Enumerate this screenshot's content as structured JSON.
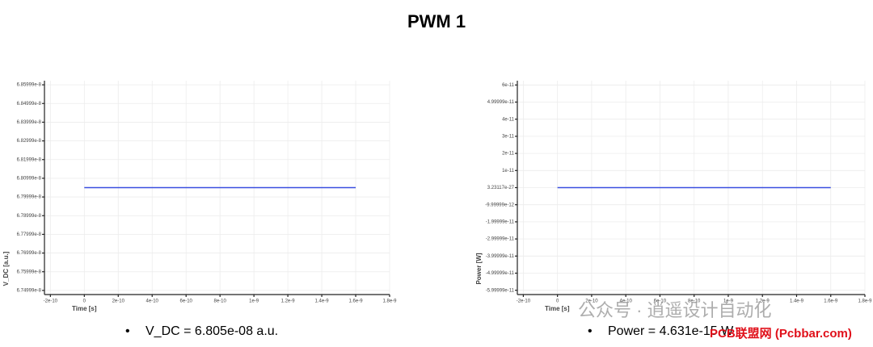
{
  "title": "PWM 1",
  "chart_data": [
    {
      "type": "line",
      "xlabel": "Time [s]",
      "ylabel": "V_DC [a.u.]",
      "x": [
        0,
        1.6e-09
      ],
      "values": [
        6.805e-08,
        6.805e-08
      ],
      "color": "#3a4fe0",
      "xlim": [
        -2.35e-10,
        1.8e-09
      ],
      "xticks": [
        -2e-10,
        0,
        2e-10,
        4e-10,
        6e-10,
        8e-10,
        1e-09,
        1.2e-09,
        1.4e-09,
        1.6e-09,
        1.8e-09
      ],
      "ylim": [
        6.74779e-08,
        6.86219e-08
      ],
      "yticks": [
        6.74999e-08,
        6.75999e-08,
        6.76999e-08,
        6.77999e-08,
        6.78999e-08,
        6.79999e-08,
        6.80999e-08,
        6.81999e-08,
        6.82999e-08,
        6.83999e-08,
        6.84999e-08,
        6.85999e-08
      ],
      "grid": true
    },
    {
      "type": "line",
      "xlabel": "Time [s]",
      "ylabel": "Power [W]",
      "x": [
        0,
        1.6e-09
      ],
      "values": [
        4.631e-15,
        4.631e-15
      ],
      "color": "#3a4fe0",
      "xlim": [
        -2.35e-10,
        1.8e-09
      ],
      "xticks": [
        -2e-10,
        0,
        2e-10,
        4e-10,
        6e-10,
        8e-10,
        1e-09,
        1.2e-09,
        1.4e-09,
        1.6e-09,
        1.8e-09
      ],
      "ylim": [
        -6.25e-11,
        6.25e-11
      ],
      "yticks": [
        -5.99999e-11,
        -4.99999e-11,
        -3.99999e-11,
        -2.99999e-11,
        -1.99999e-11,
        -9.99999e-12,
        3.23117e-27,
        1e-11,
        2e-11,
        3e-11,
        4e-11,
        4.99999e-11,
        6e-11
      ],
      "grid": true
    }
  ],
  "bullets": [
    "V_DC = 6.805e-08 a.u.",
    "Power = 4.631e-15 W"
  ],
  "watermarks": [
    "公众号 · 逍遥设计自动化",
    "PCB联盟网 (Pcbbar.com)"
  ]
}
